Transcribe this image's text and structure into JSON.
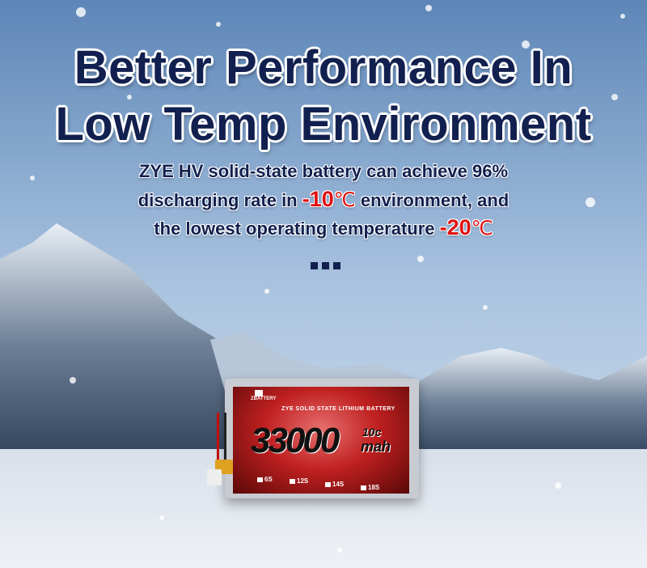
{
  "headline": {
    "line1": "Better Performance In",
    "line2": "Low Temp Environment"
  },
  "description": {
    "line1": "ZYE HV solid-state battery can achieve 96%",
    "line2_pre": "discharging rate in ",
    "line2_temp": "-10",
    "line2_unit": "℃",
    "line2_post": " environment, and",
    "line3_pre": "the lowest operating temperature ",
    "line3_temp": "-20",
    "line3_unit": "℃"
  },
  "battery": {
    "brand": "ZBATTERY",
    "label_title": "ZYE SOLID STATE LITHIUM BATTERY",
    "capacity": "33000",
    "rate": "10c",
    "unit": "mah",
    "cell_options": [
      "6S",
      "12S",
      "14S",
      "18S"
    ]
  },
  "colors": {
    "headline": "#12204f",
    "highlight": "#e01010",
    "label_red": "#c02020"
  }
}
